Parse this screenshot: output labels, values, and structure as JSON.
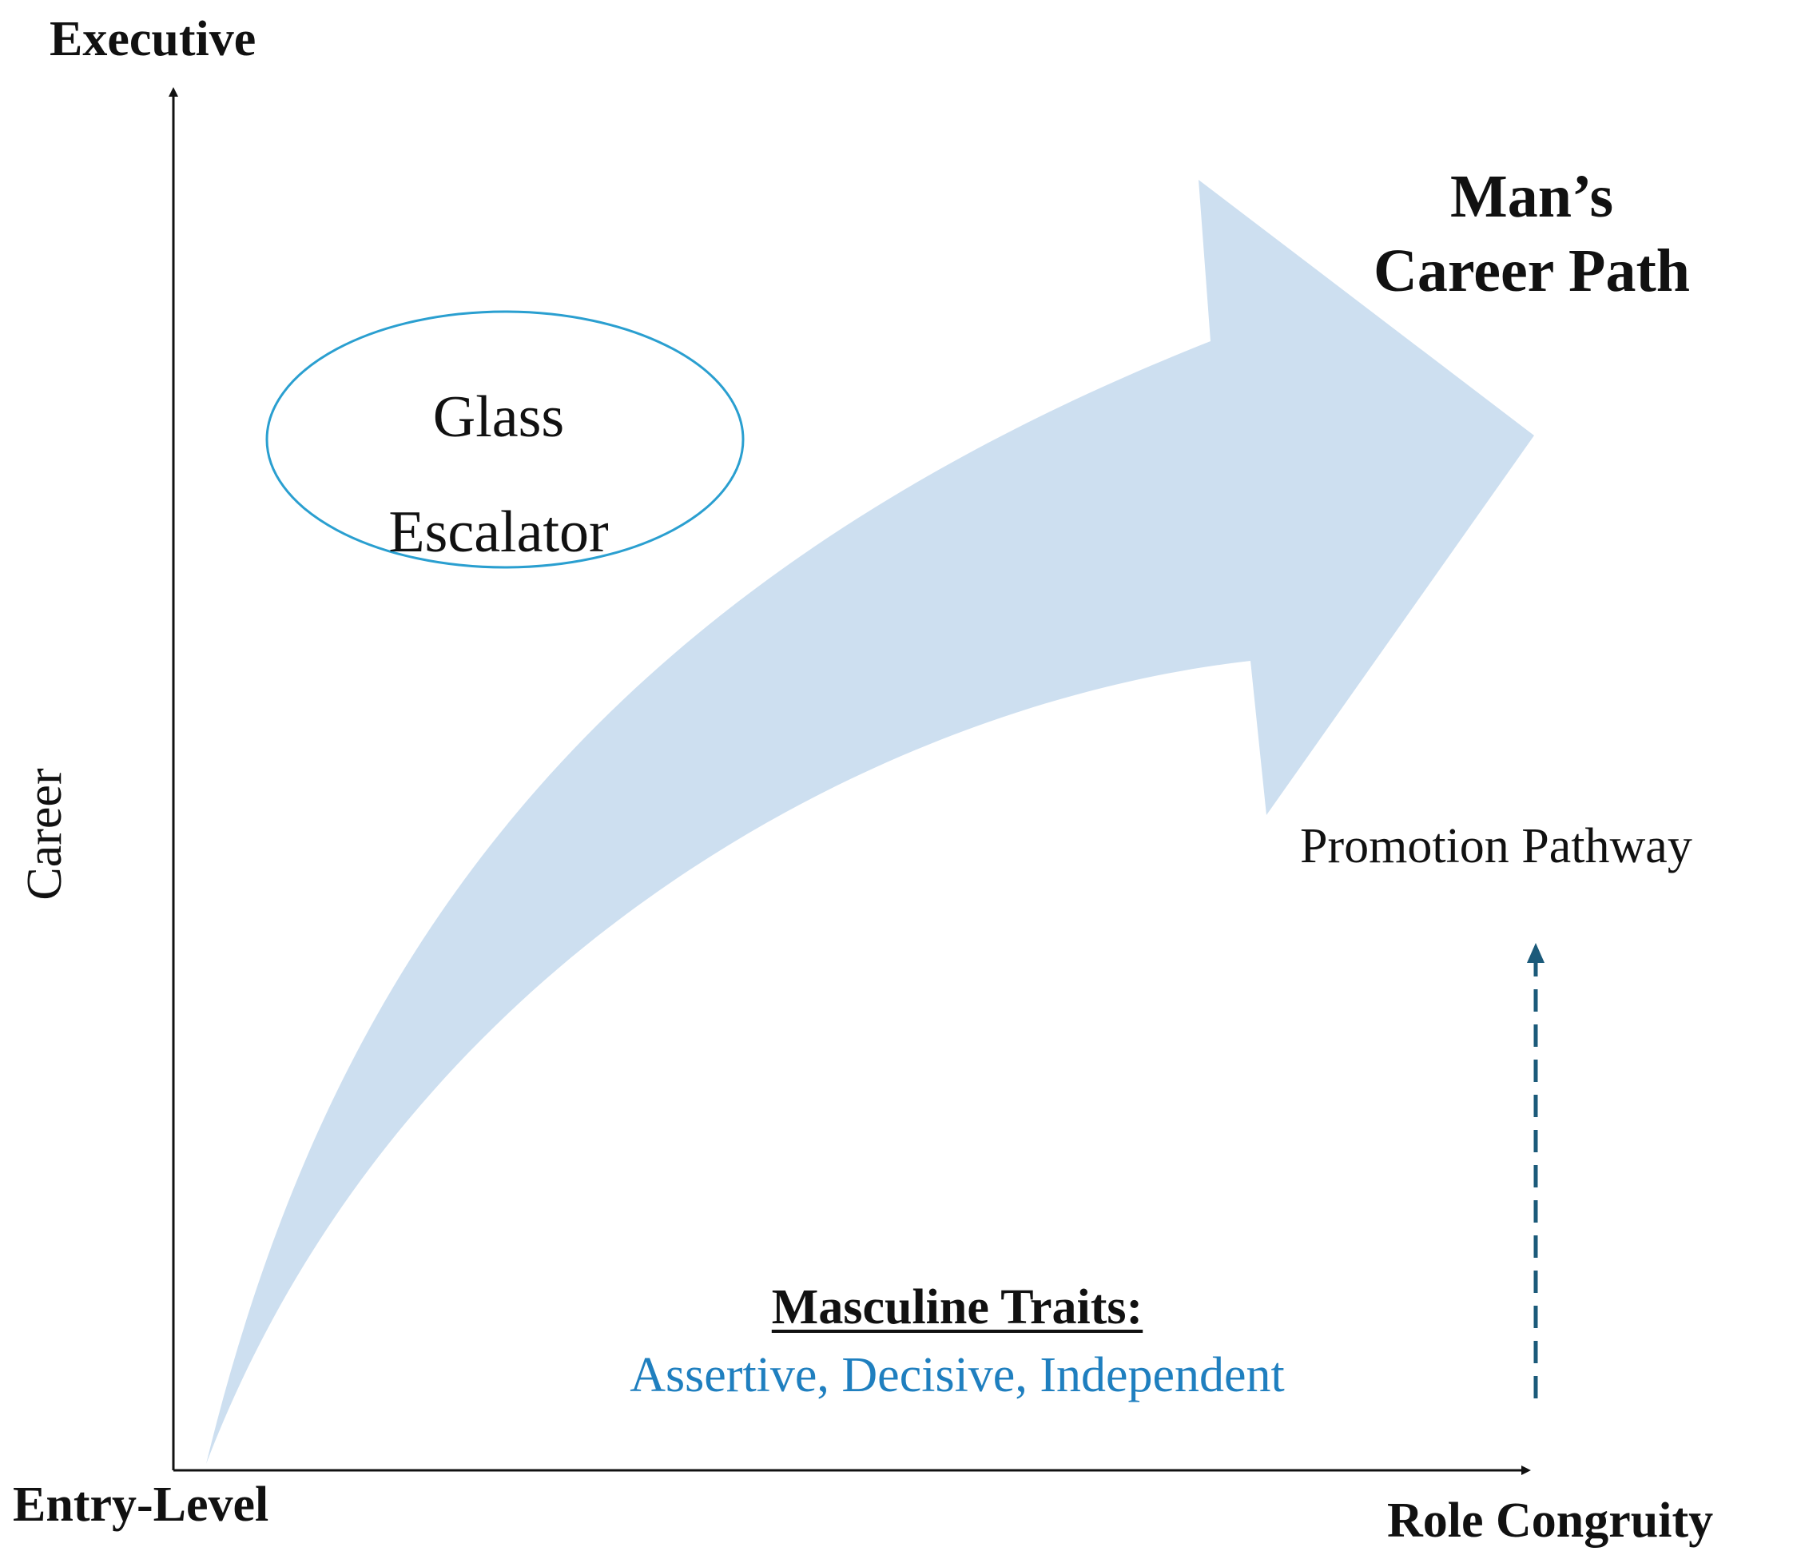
{
  "axes": {
    "y_top_label": "Executive",
    "y_axis_title": "Career",
    "origin_label": "Entry-Level",
    "x_axis_title": "Role Congruity"
  },
  "path_label": {
    "line1": "Man’s",
    "line2": "Career Path"
  },
  "oval": {
    "line1": "Glass",
    "line2": "Escalator"
  },
  "promotion_label": "Promotion Pathway",
  "traits": {
    "title": "Masculine Traits:",
    "list": "Assertive, Decisive, Independent"
  },
  "colors": {
    "arrow_fill": "#cddff0",
    "oval_stroke": "#2a9fd0",
    "traits_text": "#1f7fbf",
    "dashed_arrow": "#1b5a7a",
    "axis": "#111111"
  }
}
